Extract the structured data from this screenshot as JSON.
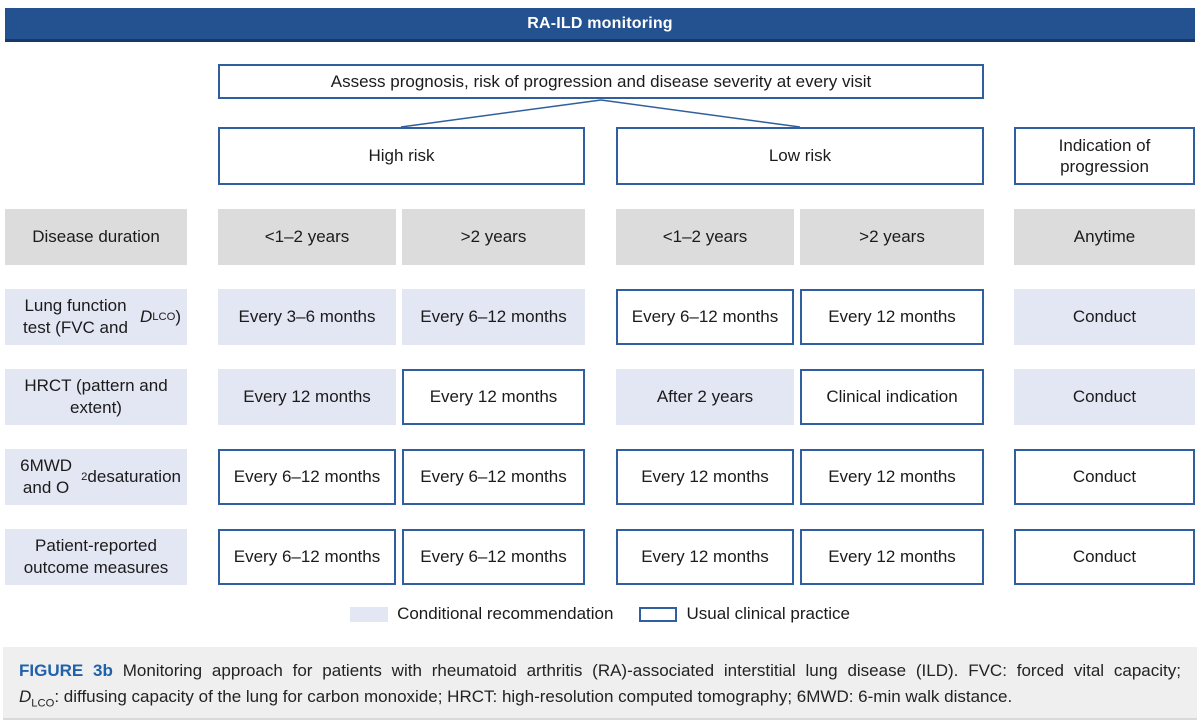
{
  "header": {
    "title": "RA-ILD monitoring"
  },
  "flow": {
    "assess_label": "Assess prognosis, risk of progression and disease severity at every visit",
    "branches": {
      "high": "High risk",
      "low": "Low risk",
      "indication": "Indication of progression"
    }
  },
  "matrix": {
    "rows": [
      {
        "label_segments": [
          {
            "t": "Disease duration"
          }
        ],
        "label_variant": "gray",
        "cells": [
          {
            "text": "<1–2 years",
            "variant": "gray"
          },
          {
            "text": ">2 years",
            "variant": "gray"
          },
          {
            "text": "<1–2 years",
            "variant": "gray"
          },
          {
            "text": ">2 years",
            "variant": "gray"
          },
          {
            "text": "Anytime",
            "variant": "gray"
          }
        ]
      },
      {
        "label_segments": [
          {
            "t": "Lung function test (FVC and "
          },
          {
            "t": "D",
            "i": true
          },
          {
            "t": "LCO",
            "sub": true
          },
          {
            "t": ")"
          }
        ],
        "label_variant": "lav",
        "cells": [
          {
            "text": "Every 3–6 months",
            "variant": "lav"
          },
          {
            "text": "Every 6–12 months",
            "variant": "lav"
          },
          {
            "text": "Every 6–12 months",
            "variant": "outline"
          },
          {
            "text": "Every 12 months",
            "variant": "outline"
          },
          {
            "text": "Conduct",
            "variant": "lav"
          }
        ]
      },
      {
        "label_segments": [
          {
            "t": "HRCT (pattern and extent)"
          }
        ],
        "label_variant": "lav",
        "cells": [
          {
            "text": "Every 12 months",
            "variant": "lav"
          },
          {
            "text": "Every 12 months",
            "variant": "outline"
          },
          {
            "text": "After 2 years",
            "variant": "lav"
          },
          {
            "text": "Clinical indication",
            "variant": "outline"
          },
          {
            "text": "Conduct",
            "variant": "lav"
          }
        ]
      },
      {
        "label_segments": [
          {
            "t": "6MWD and O"
          },
          {
            "t": "2",
            "sub": true
          },
          {
            "t": " desaturation"
          }
        ],
        "label_variant": "lav",
        "cells": [
          {
            "text": "Every 6–12 months",
            "variant": "outline"
          },
          {
            "text": "Every 6–12 months",
            "variant": "outline"
          },
          {
            "text": "Every 12 months",
            "variant": "outline"
          },
          {
            "text": "Every 12 months",
            "variant": "outline"
          },
          {
            "text": "Conduct",
            "variant": "outline"
          }
        ]
      },
      {
        "label_segments": [
          {
            "t": "Patient-reported outcome measures"
          }
        ],
        "label_variant": "lav",
        "cells": [
          {
            "text": "Every 6–12 months",
            "variant": "outline"
          },
          {
            "text": "Every 6–12 months",
            "variant": "outline"
          },
          {
            "text": "Every 12 months",
            "variant": "outline"
          },
          {
            "text": "Every 12 months",
            "variant": "outline"
          },
          {
            "text": "Conduct",
            "variant": "outline"
          }
        ]
      }
    ]
  },
  "legend": {
    "items": [
      {
        "label": "Conditional recommendation",
        "swatch": "lav"
      },
      {
        "label": "Usual clinical practice",
        "swatch": "outline"
      }
    ]
  },
  "caption": {
    "figure_label": "FIGURE 3b",
    "line1_segments": [
      {
        "t": " Monitoring approach for patients with rheumatoid arthritis (RA)-associated interstitial lung disease (ILD). FVC: forced vital capacity;"
      }
    ],
    "line2_segments": [
      {
        "t": "D",
        "i": true
      },
      {
        "t": "LCO",
        "sub": true
      },
      {
        "t": ": diffusing capacity of the lung for carbon monoxide; HRCT: high-resolution computed tomography; 6MWD: 6-min walk distance."
      }
    ]
  },
  "colors": {
    "header_bar": "#24518f",
    "header_bar_edge": "#16386b",
    "box_border_blue": "#2f5f9e",
    "gray_fill": "#dcdcdc",
    "conditional_fill": "#e3e6f3",
    "caption_background": "#efefef",
    "figure_label_blue": "#2061a9"
  }
}
